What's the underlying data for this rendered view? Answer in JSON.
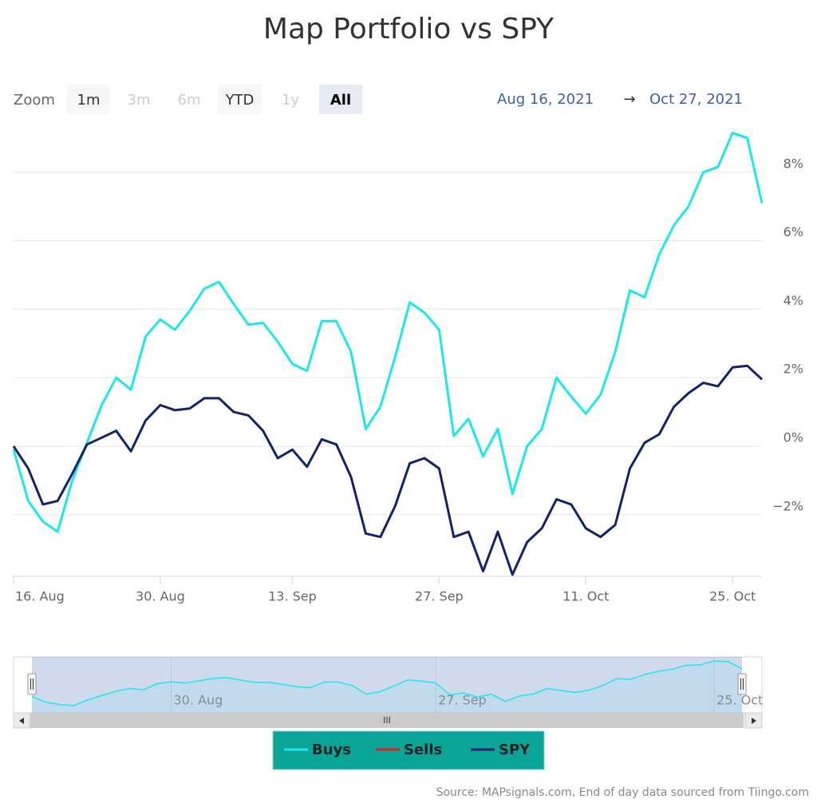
{
  "chart_data": {
    "type": "line",
    "title": "Map Portfolio vs SPY",
    "range_selector": {
      "label": "Zoom",
      "buttons": [
        "1m",
        "3m",
        "6m",
        "YTD",
        "1y",
        "All"
      ],
      "from": "Aug 16, 2021",
      "arrow": "→",
      "to": "Oct 27, 2021"
    },
    "x": [
      "2021-08-16",
      "2021-08-17",
      "2021-08-18",
      "2021-08-19",
      "2021-08-20",
      "2021-08-23",
      "2021-08-24",
      "2021-08-25",
      "2021-08-26",
      "2021-08-27",
      "2021-08-30",
      "2021-08-31",
      "2021-09-01",
      "2021-09-02",
      "2021-09-03",
      "2021-09-07",
      "2021-09-08",
      "2021-09-09",
      "2021-09-10",
      "2021-09-13",
      "2021-09-14",
      "2021-09-15",
      "2021-09-16",
      "2021-09-17",
      "2021-09-20",
      "2021-09-21",
      "2021-09-22",
      "2021-09-23",
      "2021-09-24",
      "2021-09-27",
      "2021-09-28",
      "2021-09-29",
      "2021-09-30",
      "2021-10-01",
      "2021-10-04",
      "2021-10-05",
      "2021-10-06",
      "2021-10-07",
      "2021-10-08",
      "2021-10-11",
      "2021-10-12",
      "2021-10-13",
      "2021-10-14",
      "2021-10-15",
      "2021-10-18",
      "2021-10-19",
      "2021-10-20",
      "2021-10-21",
      "2021-10-22",
      "2021-10-25",
      "2021-10-26",
      "2021-10-27"
    ],
    "series": [
      {
        "name": "Buys",
        "color": "#1ee6ee",
        "values": [
          -0.1,
          -1.6,
          -2.2,
          -2.5,
          -1.0,
          0.1,
          1.2,
          2.0,
          1.65,
          3.2,
          3.7,
          3.4,
          3.95,
          4.6,
          4.8,
          4.15,
          3.55,
          3.6,
          3.05,
          2.4,
          2.2,
          3.65,
          3.65,
          2.75,
          0.5,
          1.15,
          2.6,
          4.2,
          3.9,
          3.4,
          0.3,
          0.8,
          -0.3,
          0.5,
          -1.4,
          0.0,
          0.5,
          2.0,
          1.45,
          0.95,
          1.5,
          2.75,
          4.55,
          4.35,
          5.6,
          6.45,
          7.0,
          8.0,
          8.15,
          9.15,
          9.0,
          7.1
        ]
      },
      {
        "name": "Sells",
        "color": "#e0201b",
        "values": [
          null,
          null,
          null,
          null,
          null,
          null,
          null,
          null,
          null,
          null,
          null,
          null,
          null,
          null,
          null,
          null,
          null,
          null,
          null,
          null,
          null,
          null,
          null,
          null,
          null,
          null,
          null,
          null,
          null,
          null,
          null,
          null,
          null,
          null,
          null,
          null,
          null,
          null,
          null,
          null,
          null,
          null,
          null,
          null,
          null,
          null,
          null,
          null,
          null,
          null,
          null,
          null
        ]
      },
      {
        "name": "SPY",
        "color": "#14216b",
        "values": [
          0,
          -0.65,
          -1.7,
          -1.6,
          -0.8,
          0.05,
          0.25,
          0.45,
          -0.15,
          0.75,
          1.2,
          1.05,
          1.1,
          1.4,
          1.4,
          1.0,
          0.9,
          0.45,
          -0.35,
          -0.1,
          -0.6,
          0.2,
          0.05,
          -0.9,
          -2.55,
          -2.65,
          -1.75,
          -0.5,
          -0.35,
          -0.65,
          -2.65,
          -2.5,
          -3.65,
          -2.5,
          -3.75,
          -2.8,
          -2.4,
          -1.55,
          -1.7,
          -2.4,
          -2.65,
          -2.3,
          -0.65,
          0.1,
          0.35,
          1.15,
          1.55,
          1.85,
          1.75,
          2.3,
          2.35,
          1.95
        ]
      }
    ],
    "ylim": [
      -3.8,
      9.3
    ],
    "yticks": [
      {
        "value": -2,
        "label": "−2%"
      },
      {
        "value": 0,
        "label": "0%"
      },
      {
        "value": 2,
        "label": "2%"
      },
      {
        "value": 4,
        "label": "4%"
      },
      {
        "value": 6,
        "label": "6%"
      },
      {
        "value": 8,
        "label": "8%"
      }
    ],
    "xticks": [
      {
        "value": "2021-08-16",
        "label": "16. Aug"
      },
      {
        "value": "2021-08-30",
        "label": "30. Aug"
      },
      {
        "value": "2021-09-13",
        "label": "13. Sep"
      },
      {
        "value": "2021-09-27",
        "label": "27. Sep"
      },
      {
        "value": "2021-10-11",
        "label": "11. Oct"
      },
      {
        "value": "2021-10-25",
        "label": "25. Oct"
      }
    ],
    "navigator_ticks": [
      {
        "value": "2021-08-30",
        "label": "30. Aug"
      },
      {
        "value": "2021-09-27",
        "label": "27. Sep"
      },
      {
        "value": "2021-10-25",
        "label": "25. Oct"
      }
    ],
    "scrollbar_grip": "III",
    "grid": true,
    "legend": "bottom",
    "source": "Source: MAPsignals.com, End of day data sourced from Tiingo.com"
  }
}
